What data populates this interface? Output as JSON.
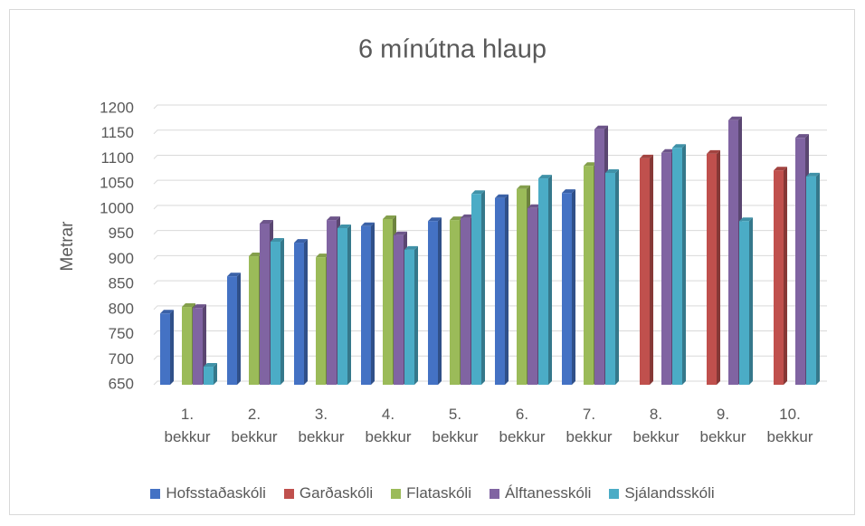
{
  "chart_data": {
    "type": "bar",
    "title": "6 mínútna hlaup",
    "y_label": "Metrar",
    "categories": [
      "1. bekkur",
      "2. bekkur",
      "3. bekkur",
      "4. bekkur",
      "5. bekkur",
      "6. bekkur",
      "7. bekkur",
      "8. bekkur",
      "9. bekkur",
      "10. bekkur"
    ],
    "series": [
      {
        "name": "Hofsstaðaskóli",
        "color": "#4472c4",
        "values": [
          792,
          866,
          933,
          966,
          976,
          1022,
          1032,
          null,
          null,
          null
        ]
      },
      {
        "name": "Garðaskóli",
        "color": "#c0504d",
        "values": [
          null,
          null,
          null,
          null,
          null,
          null,
          null,
          1101,
          1110,
          1077
        ]
      },
      {
        "name": "Flataskóli",
        "color": "#9bbb59",
        "values": [
          805,
          906,
          904,
          980,
          978,
          1040,
          1086,
          null,
          null,
          null
        ]
      },
      {
        "name": "Álftanesskóli",
        "color": "#8064a2",
        "values": [
          803,
          971,
          978,
          948,
          982,
          1002,
          1159,
          1112,
          1177,
          1142
        ]
      },
      {
        "name": "Sjálandsskóli",
        "color": "#4bacc6",
        "values": [
          686,
          935,
          962,
          919,
          1030,
          1061,
          1072,
          1122,
          976,
          1065
        ]
      }
    ],
    "ylim": [
      650,
      1200
    ],
    "yticks": [
      650,
      700,
      750,
      800,
      850,
      900,
      950,
      1000,
      1050,
      1100,
      1150,
      1200
    ],
    "grid": true,
    "legend": "bottom"
  }
}
